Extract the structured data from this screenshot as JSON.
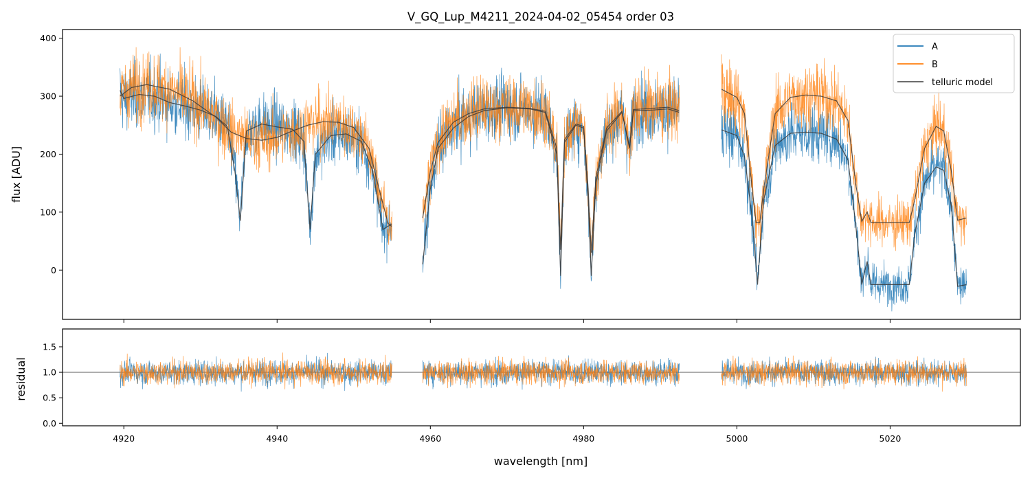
{
  "chart_data": {
    "type": "line",
    "title": "V_GQ_Lup_M4211_2024-04-02_05454  order 03",
    "xlabel": "wavelength [nm]",
    "xlim": [
      4912,
      5037
    ],
    "xticks": [
      4920,
      4940,
      4960,
      4980,
      5000,
      5020
    ],
    "colors": {
      "A": "#1f77b4",
      "B": "#ff7f0e",
      "model": "#3a3a3a"
    },
    "legend": {
      "position": "upper-right",
      "entries": [
        "A",
        "B",
        "telluric model"
      ]
    },
    "top_panel": {
      "ylabel": "flux [ADU]",
      "ylim": [
        -85,
        415
      ],
      "yticks": [
        0,
        100,
        200,
        300,
        400
      ],
      "segments": [
        {
          "x_range": [
            4919.5,
            4955.0
          ],
          "model_A_points": [
            [
              4919.5,
              310
            ],
            [
              4920,
              296
            ],
            [
              4922,
              303
            ],
            [
              4924,
              300
            ],
            [
              4926,
              289
            ],
            [
              4928,
              283
            ],
            [
              4930,
              276
            ],
            [
              4932,
              265
            ],
            [
              4933.5,
              248
            ],
            [
              4934.5,
              170
            ],
            [
              4935.2,
              85
            ],
            [
              4936,
              240
            ],
            [
              4938,
              252
            ],
            [
              4940,
              247
            ],
            [
              4942,
              243
            ],
            [
              4943.5,
              222
            ],
            [
              4944.3,
              70
            ],
            [
              4945,
              200
            ],
            [
              4947,
              232
            ],
            [
              4949,
              235
            ],
            [
              4951,
              222
            ],
            [
              4952.5,
              170
            ],
            [
              4953.8,
              70
            ],
            [
              4955,
              80
            ]
          ],
          "model_B_points": [
            [
              4919.5,
              300
            ],
            [
              4921,
              315
            ],
            [
              4923,
              320
            ],
            [
              4926,
              312
            ],
            [
              4929,
              292
            ],
            [
              4932,
              264
            ],
            [
              4934,
              238
            ],
            [
              4936,
              227
            ],
            [
              4938,
              224
            ],
            [
              4940,
              229
            ],
            [
              4942,
              240
            ],
            [
              4944,
              250
            ],
            [
              4946,
              256
            ],
            [
              4948,
              255
            ],
            [
              4950,
              246
            ],
            [
              4952,
              210
            ],
            [
              4953.5,
              130
            ],
            [
              4954.5,
              80
            ],
            [
              4955,
              75
            ]
          ]
        },
        {
          "x_range": [
            4959.0,
            4992.5
          ],
          "model_A_points": [
            [
              4959,
              10
            ],
            [
              4960,
              140
            ],
            [
              4961,
              210
            ],
            [
              4963,
              245
            ],
            [
              4965,
              265
            ],
            [
              4967,
              275
            ],
            [
              4970,
              280
            ],
            [
              4973,
              278
            ],
            [
              4975,
              272
            ],
            [
              4976.5,
              200
            ],
            [
              4977,
              -10
            ],
            [
              4977.5,
              220
            ],
            [
              4979,
              250
            ],
            [
              4980,
              245
            ],
            [
              4980.6,
              120
            ],
            [
              4981,
              -10
            ],
            [
              4981.6,
              150
            ],
            [
              4983,
              240
            ],
            [
              4985,
              272
            ],
            [
              4986,
              210
            ],
            [
              4986.5,
              275
            ],
            [
              4989,
              276
            ],
            [
              4991,
              278
            ],
            [
              4992.5,
              272
            ]
          ],
          "model_B_points": [
            [
              4959,
              90
            ],
            [
              4960,
              170
            ],
            [
              4961,
              220
            ],
            [
              4963,
              255
            ],
            [
              4965,
              270
            ],
            [
              4967,
              278
            ],
            [
              4970,
              281
            ],
            [
              4973,
              279
            ],
            [
              4975,
              274
            ],
            [
              4976.5,
              210
            ],
            [
              4977,
              35
            ],
            [
              4977.5,
              225
            ],
            [
              4979,
              252
            ],
            [
              4980,
              248
            ],
            [
              4980.6,
              140
            ],
            [
              4981,
              30
            ],
            [
              4981.6,
              160
            ],
            [
              4983,
              245
            ],
            [
              4985,
              274
            ],
            [
              4986,
              212
            ],
            [
              4986.5,
              277
            ],
            [
              4989,
              279
            ],
            [
              4991,
              281
            ],
            [
              4992.5,
              275
            ]
          ]
        },
        {
          "x_range": [
            4998.0,
            5030.0
          ],
          "model_A_points": [
            [
              4998,
              242
            ],
            [
              5000,
              232
            ],
            [
              5001,
              196
            ],
            [
              5002,
              90
            ],
            [
              5002.7,
              -25
            ],
            [
              5003.5,
              120
            ],
            [
              5005,
              215
            ],
            [
              5007,
              236
            ],
            [
              5009,
              238
            ],
            [
              5011,
              236
            ],
            [
              5013,
              226
            ],
            [
              5014.5,
              190
            ],
            [
              5015.5,
              80
            ],
            [
              5016.3,
              -25
            ],
            [
              5017,
              15
            ],
            [
              5017.5,
              -25
            ],
            [
              5020,
              -25
            ],
            [
              5022.5,
              -25
            ],
            [
              5023.2,
              60
            ],
            [
              5024.5,
              150
            ],
            [
              5026,
              178
            ],
            [
              5027,
              172
            ],
            [
              5028,
              110
            ],
            [
              5028.8,
              -28
            ],
            [
              5030,
              -25
            ]
          ],
          "model_B_points": [
            [
              4998,
              312
            ],
            [
              5000,
              298
            ],
            [
              5001,
              270
            ],
            [
              5002,
              140
            ],
            [
              5002.5,
              82
            ],
            [
              5003,
              82
            ],
            [
              5003.5,
              140
            ],
            [
              5005,
              270
            ],
            [
              5007,
              298
            ],
            [
              5009,
              302
            ],
            [
              5011,
              300
            ],
            [
              5013,
              292
            ],
            [
              5014.5,
              258
            ],
            [
              5015.5,
              150
            ],
            [
              5016.3,
              84
            ],
            [
              5017,
              100
            ],
            [
              5017.5,
              82
            ],
            [
              5020,
              82
            ],
            [
              5022.5,
              82
            ],
            [
              5023.2,
              120
            ],
            [
              5024.5,
              210
            ],
            [
              5026,
              248
            ],
            [
              5027,
              240
            ],
            [
              5028,
              170
            ],
            [
              5028.8,
              86
            ],
            [
              5030,
              90
            ]
          ]
        }
      ],
      "flux_noise_sigma": 40
    },
    "bottom_panel": {
      "ylabel": "residual",
      "ylim": [
        -0.05,
        1.85
      ],
      "yticks": [
        0.0,
        0.5,
        1.0,
        1.5
      ],
      "reference_line": 1.0,
      "segments_x": [
        [
          4919.5,
          4955.0
        ],
        [
          4959.0,
          4992.5
        ],
        [
          4998.0,
          5030.0
        ]
      ],
      "residual_noise_sigma": 0.17
    }
  }
}
